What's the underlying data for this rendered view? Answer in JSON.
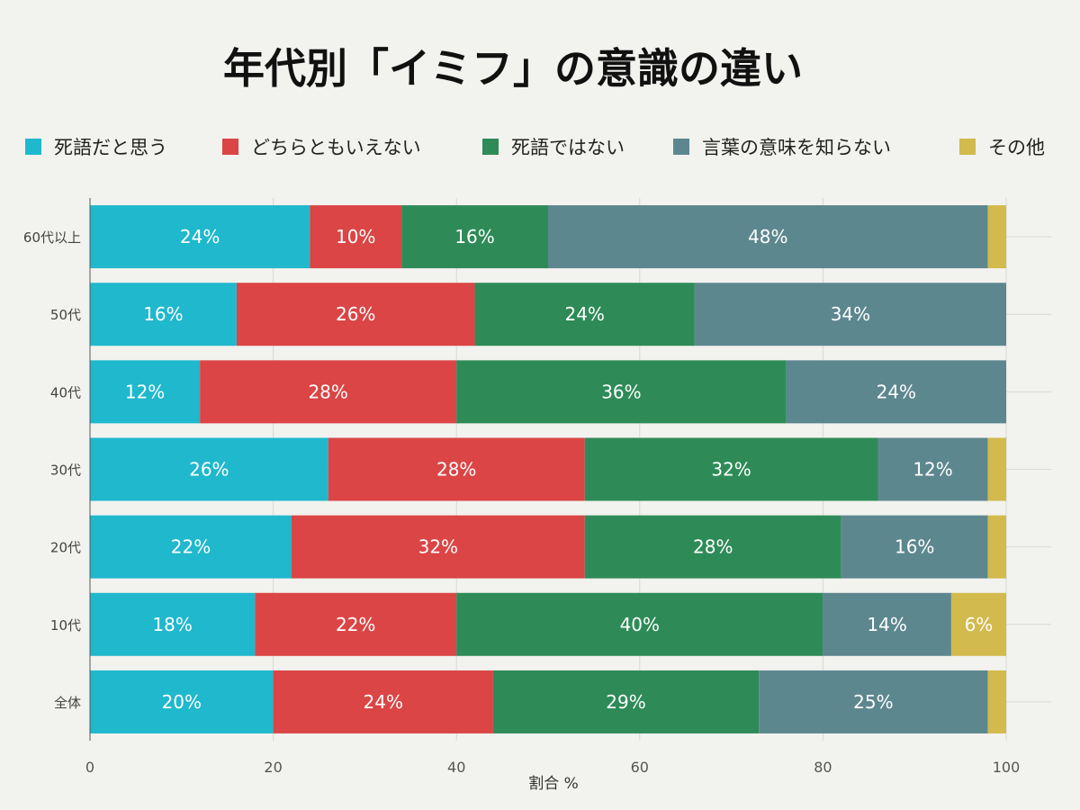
{
  "chart_data": {
    "type": "bar",
    "orientation": "horizontal",
    "stacked": true,
    "title": "年代別「イミフ」の意識の違い",
    "xlabel": "割合 %",
    "ylabel": "",
    "xlim": [
      0,
      100
    ],
    "x_ticks": [
      0,
      20,
      40,
      60,
      80,
      100
    ],
    "grid": true,
    "legend_position": "top",
    "categories": [
      "60代以上",
      "50代",
      "40代",
      "30代",
      "20代",
      "10代",
      "全体"
    ],
    "series": [
      {
        "name": "死語だと思う",
        "color": "#1fb8cd",
        "values": [
          24,
          16,
          12,
          26,
          22,
          18,
          20
        ]
      },
      {
        "name": "どちらともいえない",
        "color": "#db4545",
        "values": [
          10,
          26,
          28,
          28,
          32,
          22,
          24
        ]
      },
      {
        "name": "死語ではない",
        "color": "#2e8b57",
        "values": [
          16,
          24,
          36,
          32,
          28,
          40,
          29
        ]
      },
      {
        "name": "言葉の意味を知らない",
        "color": "#5d878f",
        "values": [
          48,
          34,
          24,
          12,
          16,
          14,
          25
        ]
      },
      {
        "name": "その他",
        "color": "#d2ba4c",
        "values": [
          2,
          0,
          0,
          2,
          2,
          6,
          2
        ]
      }
    ],
    "data_label_min": 5
  }
}
